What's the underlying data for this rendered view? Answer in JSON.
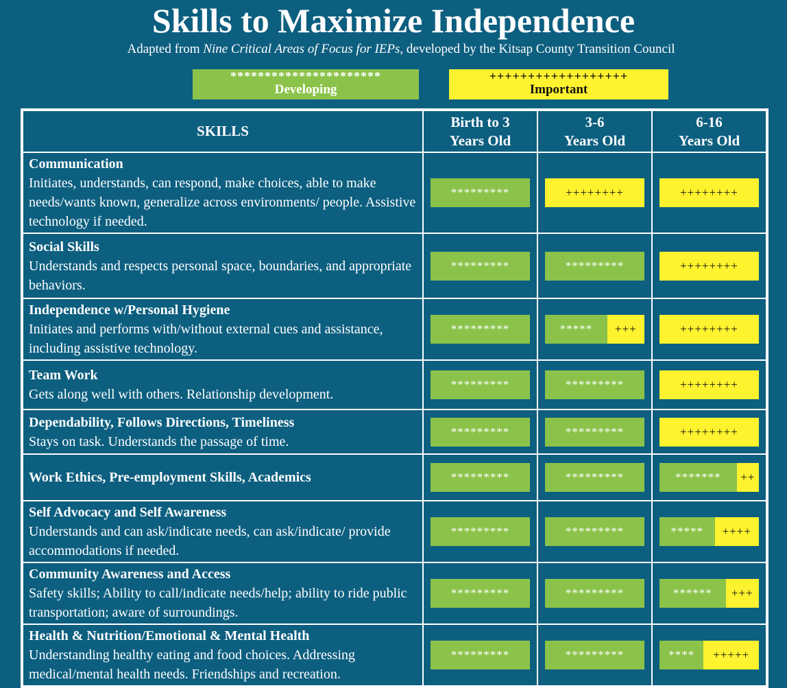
{
  "header": {
    "title": "Skills to Maximize Independence",
    "subtitle": {
      "prefix": "Adapted from ",
      "italic": "Nine Critical Areas of Focus for IEPs",
      "suffix": ", developed by the Kitsap County Transition Council"
    }
  },
  "legend": {
    "developing": {
      "symbols": "**********************",
      "label": "Developing",
      "color": "#8bc34a",
      "text_color": "#ffffff"
    },
    "important": {
      "symbols": "++++++++++++++++++",
      "label": "Important",
      "color": "#fff22e",
      "text_color": "#111111"
    }
  },
  "table": {
    "columns": [
      [
        "SKILLS"
      ],
      [
        "Birth to 3",
        "Years Old"
      ],
      [
        "3-6",
        "Years Old"
      ],
      [
        "6-16",
        "Years Old"
      ]
    ],
    "rows": [
      {
        "skill": "Communication",
        "description": "Initiates, understands, can respond, make choices, able to make needs/wants known, generalize across environments/ people. Assistive technology if needed.",
        "cells": [
          {
            "developing": "*********"
          },
          {
            "important": "++++++++"
          },
          {
            "important": "++++++++"
          }
        ]
      },
      {
        "skill": "Social Skills",
        "description": "Understands and respects personal space, boundaries, and appropriate behaviors.",
        "cells": [
          {
            "developing": "*********"
          },
          {
            "developing": "*********"
          },
          {
            "important": "++++++++"
          }
        ]
      },
      {
        "skill": "Independence w/Personal Hygiene",
        "description": "Initiates and performs with/without external cues and assistance, including assistive technology.",
        "cells": [
          {
            "developing": "*********"
          },
          {
            "developing": "*****",
            "important": "+++"
          },
          {
            "important": "++++++++"
          }
        ]
      },
      {
        "skill": "Team Work",
        "description": "Gets along well with others. Relationship development.",
        "cells": [
          {
            "developing": "*********"
          },
          {
            "developing": "*********"
          },
          {
            "important": "++++++++"
          }
        ]
      },
      {
        "skill": "Dependability, Follows Directions, Timeliness",
        "description": "Stays on task. Understands the passage of time.",
        "cells": [
          {
            "developing": "*********"
          },
          {
            "developing": "*********"
          },
          {
            "important": "++++++++"
          }
        ]
      },
      {
        "skill": "Work Ethics, Pre-employment Skills, Academics",
        "cells": [
          {
            "developing": "*********"
          },
          {
            "developing": "*********"
          },
          {
            "developing": "*******",
            "important": "++"
          }
        ]
      },
      {
        "skill": "Self Advocacy and Self Awareness",
        "description": "Understands and can ask/indicate needs, can ask/indicate/ provide accommodations if needed.",
        "cells": [
          {
            "developing": "*********"
          },
          {
            "developing": "*********"
          },
          {
            "developing": "*****",
            "important": "++++"
          }
        ]
      },
      {
        "skill": "Community Awareness and Access",
        "description": "Safety skills; Ability to call/indicate needs/help; ability to ride public transportation; aware of surroundings.",
        "cells": [
          {
            "developing": "*********"
          },
          {
            "developing": "*********"
          },
          {
            "developing": "******",
            "important": "+++"
          }
        ]
      },
      {
        "skill": "Health & Nutrition/Emotional & Mental Health",
        "description": "Understanding healthy eating and food choices. Addressing medical/mental health needs. Friendships and recreation.",
        "cells": [
          {
            "developing": "*********"
          },
          {
            "developing": "*********"
          },
          {
            "developing": "****",
            "important": "+++++"
          }
        ]
      }
    ]
  }
}
